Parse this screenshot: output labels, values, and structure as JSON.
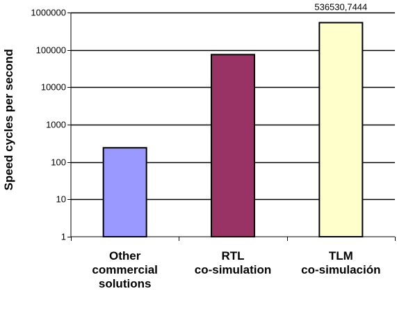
{
  "chart_data": {
    "type": "bar",
    "title": "",
    "xlabel": "",
    "ylabel": "Speed cycles per second",
    "y_scale": "log",
    "ylim": [
      1,
      1000000
    ],
    "y_ticks": [
      "1",
      "10",
      "100",
      "1000",
      "10000",
      "100000",
      "1000000"
    ],
    "grid": true,
    "legend": "none",
    "categories": [
      [
        "Other",
        "commercial",
        "solutions"
      ],
      [
        "RTL",
        "co-simulation"
      ],
      [
        "TLM",
        "co-simulación"
      ]
    ],
    "values": [
      240,
      75000,
      536530.7444
    ],
    "data_labels": [
      "",
      "",
      "536530,7444"
    ],
    "colors": [
      "#9999ff",
      "#993366",
      "#ffffcc"
    ]
  }
}
